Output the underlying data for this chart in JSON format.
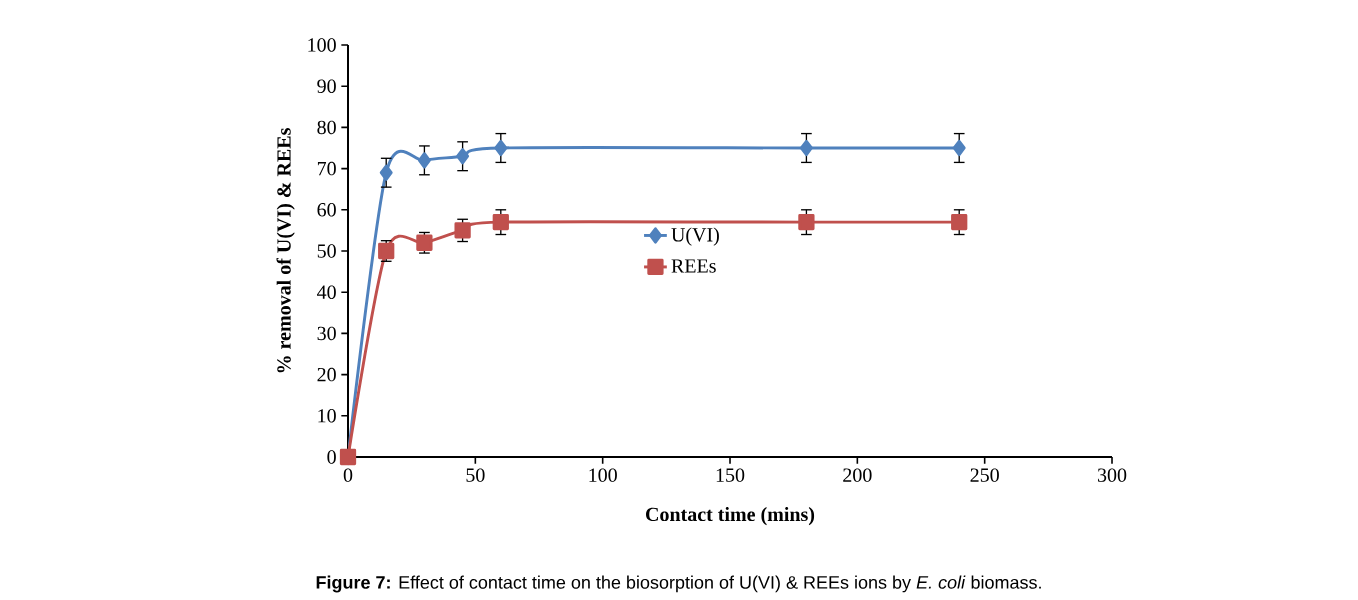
{
  "chart_data": {
    "type": "line",
    "xlabel": "Contact time (mins)",
    "ylabel": "% removal of U(VI) & REEs",
    "x": [
      0,
      15,
      30,
      45,
      60,
      180,
      240
    ],
    "series": [
      {
        "name": "U(VI)",
        "color": "#4f81bd",
        "marker": "diamond",
        "values": [
          0,
          69,
          72,
          73,
          75,
          75,
          75
        ],
        "errors": [
          null,
          3.5,
          3.5,
          3.5,
          3.5,
          3.5,
          3.5
        ]
      },
      {
        "name": "REEs",
        "color": "#c0504d",
        "marker": "square",
        "values": [
          0,
          50,
          52,
          55,
          57,
          57,
          57
        ],
        "errors": [
          null,
          2.5,
          2.5,
          2.7,
          3,
          3,
          3
        ]
      }
    ],
    "xlim": [
      0,
      300
    ],
    "xticks": [
      0,
      50,
      100,
      150,
      200,
      250,
      300
    ],
    "ylim": [
      0,
      100
    ],
    "yticks": [
      0,
      10,
      20,
      30,
      40,
      50,
      60,
      70,
      80,
      90,
      100
    ],
    "grid": false,
    "legend": "center",
    "line_style": "solid",
    "annotations": [
      "**Figure 7:** Effect of contact time on the biosorption of U(VI) & REEs ions by *E. coli* biomass."
    ]
  }
}
